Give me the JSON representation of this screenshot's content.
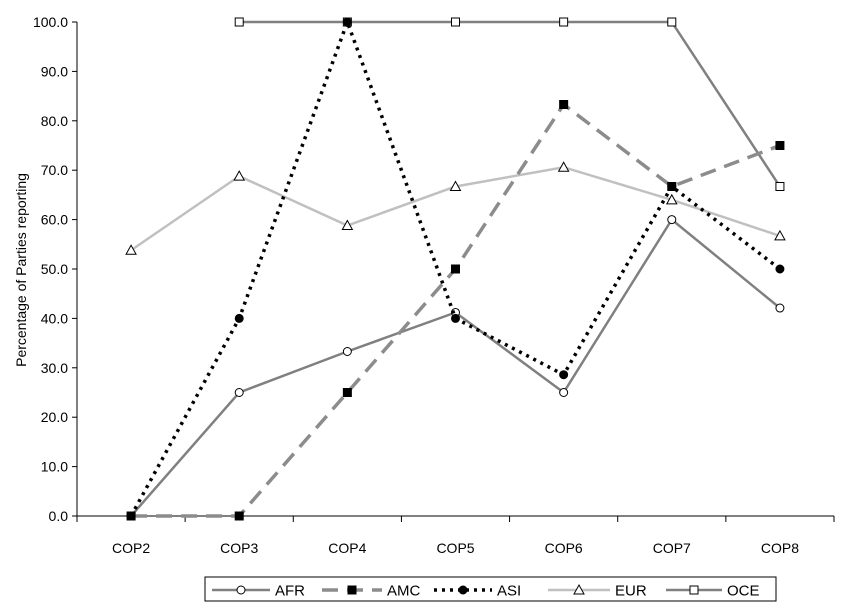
{
  "chart_data": {
    "type": "line",
    "title": "",
    "xlabel": "",
    "ylabel": "Percentage of Parties reporting",
    "categories": [
      "COP2",
      "COP3",
      "COP4",
      "COP5",
      "COP6",
      "COP7",
      "COP8"
    ],
    "ylim": [
      0,
      100
    ],
    "yticks": [
      "0.0",
      "10.0",
      "20.0",
      "30.0",
      "40.0",
      "50.0",
      "60.0",
      "70.0",
      "80.0",
      "90.0",
      "100.0"
    ],
    "grid": false,
    "legend_position": "bottom",
    "series": [
      {
        "name": "AFR",
        "values": [
          0,
          25,
          33.3,
          41.2,
          25,
          60,
          42.1
        ],
        "color": "#808080",
        "dash": "solid",
        "marker": "circle-open",
        "markerFill": "#ffffff"
      },
      {
        "name": "AMC",
        "values": [
          0,
          0,
          25,
          50,
          83.3,
          66.7,
          75
        ],
        "color": "#8c8c8c",
        "dash": "longdash",
        "marker": "square-filled",
        "markerFill": "#000000"
      },
      {
        "name": "ASI",
        "values": [
          0,
          40,
          100,
          40,
          28.6,
          66.7,
          50
        ],
        "color": "#000000",
        "dash": "dot",
        "marker": "circle-filled",
        "markerFill": "#000000"
      },
      {
        "name": "EUR",
        "values": [
          53.8,
          68.8,
          58.8,
          66.7,
          70.6,
          64,
          56.7
        ],
        "color": "#c0c0c0",
        "dash": "solid",
        "marker": "triangle-open",
        "markerFill": "#ffffff"
      },
      {
        "name": "OCE",
        "values": [
          null,
          100,
          100,
          100,
          100,
          100,
          66.7
        ],
        "color": "#808080",
        "dash": "solid",
        "marker": "square-open",
        "markerFill": "#ffffff"
      }
    ]
  }
}
